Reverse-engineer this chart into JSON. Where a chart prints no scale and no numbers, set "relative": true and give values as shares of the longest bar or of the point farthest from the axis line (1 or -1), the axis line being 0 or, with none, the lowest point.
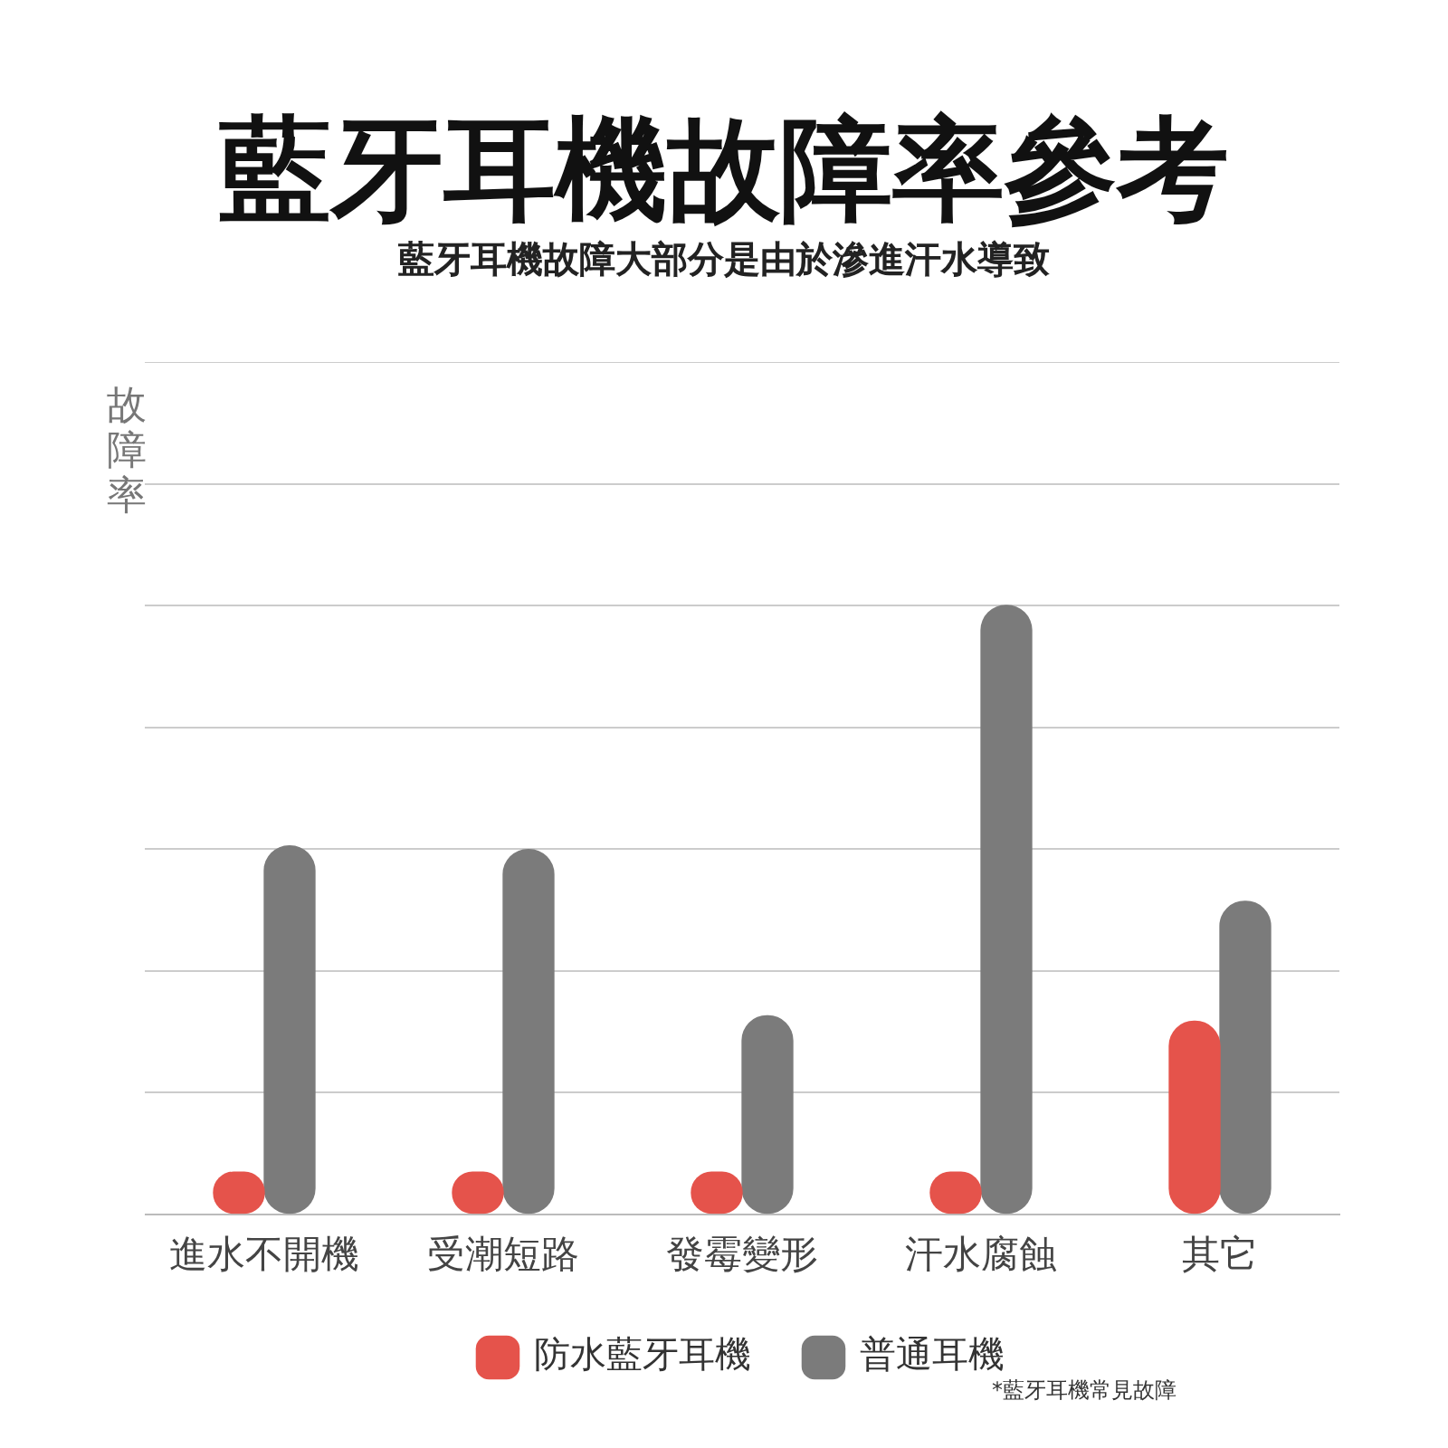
{
  "chart_data": {
    "type": "bar",
    "title": "藍牙耳機故障率參考",
    "subtitle": "藍牙耳機故障大部分是由於滲進汗水導致",
    "ylabel": "故障率",
    "categories": [
      "進水不開機",
      "受潮短路",
      "發霉變形",
      "汗水腐蝕",
      "其它"
    ],
    "series": [
      {
        "name": "防水藍牙耳機",
        "color": "#e5534b",
        "values": [
          0.069,
          0.069,
          0.069,
          0.069,
          0.317
        ]
      },
      {
        "name": "普通耳機",
        "color": "#7b7b7b",
        "values": [
          0.605,
          0.599,
          0.326,
          1,
          0.514
        ]
      }
    ],
    "relative": true,
    "grid": "y",
    "legend": "bottom",
    "annotations": [
      "*藍牙耳機常見故障"
    ]
  }
}
